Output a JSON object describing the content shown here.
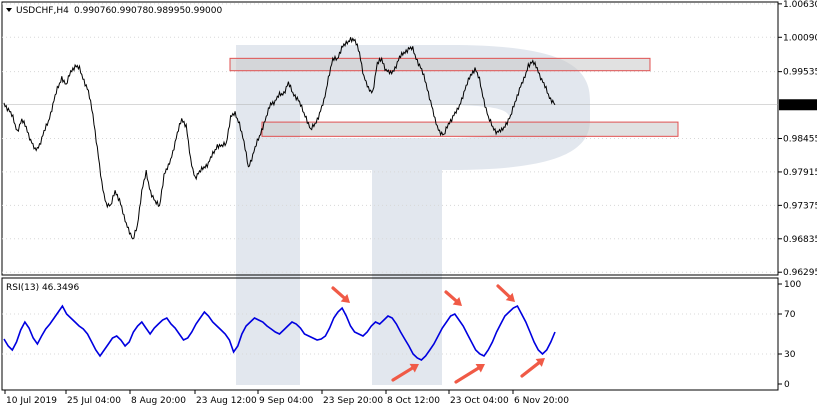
{
  "header": {
    "symbol_label": "USDCHF,H4",
    "ohlc": [
      "0.99076",
      "0.99078",
      "0.98995",
      "0.99000"
    ]
  },
  "rsi_pane": {
    "title": "RSI(13) 46.3496"
  },
  "colors": {
    "price_line": "#000000",
    "rsi_line": "#0000e0",
    "zone_fill": "#c8c8c8",
    "zone_border": "#e05050",
    "arrow": "#f05a46",
    "grid": "#d8d8d8",
    "watermark": "#dfe4ec",
    "price_tag_bg": "#000000",
    "price_tag_fg": "#ffffff"
  },
  "chart_data": [
    {
      "type": "line",
      "title": "USDCHF,H4",
      "x_ticks": [
        "10 Jul 2019",
        "25 Jul 04:00",
        "8 Aug 20:00",
        "23 Aug 12:00",
        "9 Sep 04:00",
        "23 Sep 20:00",
        "8 Oct 12:00",
        "23 Oct 04:00",
        "6 Nov 20:00"
      ],
      "y_ticks": [
        "1.00630",
        "1.00090",
        "0.99535",
        "0.98455",
        "0.97915",
        "0.97375",
        "0.96835",
        "0.96295"
      ],
      "ylim": [
        0.9625,
        1.0066
      ],
      "current_price": "0.99000",
      "series": [
        {
          "values": [
            0.9903,
            0.9892,
            0.9879,
            0.9858,
            0.9874,
            0.9865,
            0.9842,
            0.9826,
            0.9836,
            0.9855,
            0.9874,
            0.99,
            0.9925,
            0.9945,
            0.993,
            0.9955,
            0.9962,
            0.9958,
            0.994,
            0.992,
            0.9885,
            0.983,
            0.9772,
            0.9741,
            0.9735,
            0.9762,
            0.9746,
            0.9718,
            0.9701,
            0.968,
            0.9705,
            0.976,
            0.979,
            0.976,
            0.9742,
            0.9737,
            0.9786,
            0.98,
            0.9825,
            0.9852,
            0.9878,
            0.9866,
            0.981,
            0.9783,
            0.979,
            0.98,
            0.9805,
            0.982,
            0.9835,
            0.9832,
            0.9838,
            0.988,
            0.9885,
            0.9871,
            0.9838,
            0.98,
            0.9818,
            0.984,
            0.986,
            0.9878,
            0.9903,
            0.9905,
            0.9916,
            0.992,
            0.9934,
            0.992,
            0.991,
            0.9895,
            0.988,
            0.9858,
            0.987,
            0.9885,
            0.9905,
            0.9945,
            0.9972,
            0.9975,
            0.9992,
            0.9998,
            1.0008,
            1.0002,
            0.9985,
            0.9945,
            0.9925,
            0.9922,
            0.9965,
            0.9975,
            0.9955,
            0.995,
            0.996,
            0.9975,
            0.9985,
            0.999,
            0.999,
            0.9972,
            0.9955,
            0.9935,
            0.9905,
            0.9875,
            0.9858,
            0.9849,
            0.987,
            0.988,
            0.989,
            0.991,
            0.9928,
            0.9949,
            0.9958,
            0.994,
            0.9908,
            0.9878,
            0.9865,
            0.9855,
            0.9858,
            0.987,
            0.988,
            0.9905,
            0.9925,
            0.994,
            0.9965,
            0.9968,
            0.996,
            0.994,
            0.9925,
            0.991,
            0.99
          ],
          "color": "#000000"
        }
      ]
    },
    {
      "type": "line",
      "title": "RSI(13) 46.3496",
      "y_ticks": [
        "100",
        "70",
        "30",
        "0"
      ],
      "ylim": [
        0,
        100
      ],
      "series": [
        {
          "values": [
            45,
            38,
            34,
            42,
            54,
            62,
            56,
            46,
            40,
            48,
            55,
            60,
            66,
            72,
            78,
            70,
            66,
            62,
            58,
            55,
            50,
            42,
            34,
            28,
            34,
            40,
            46,
            48,
            44,
            38,
            42,
            52,
            58,
            62,
            56,
            50,
            56,
            60,
            64,
            66,
            60,
            56,
            50,
            44,
            46,
            52,
            60,
            66,
            72,
            68,
            62,
            58,
            54,
            50,
            44,
            32,
            38,
            50,
            58,
            62,
            66,
            64,
            62,
            58,
            55,
            52,
            50,
            54,
            58,
            62,
            60,
            56,
            50,
            48,
            46,
            44,
            45,
            48,
            56,
            66,
            72,
            76,
            68,
            58,
            52,
            50,
            48,
            52,
            58,
            62,
            60,
            64,
            68,
            66,
            60,
            52,
            45,
            38,
            30,
            26,
            24,
            28,
            34,
            40,
            48,
            56,
            62,
            68,
            70,
            64,
            58,
            50,
            42,
            34,
            30,
            28,
            34,
            42,
            52,
            60,
            68,
            72,
            76,
            78,
            70,
            62,
            52,
            42,
            34,
            30,
            34,
            42,
            52
          ],
          "color": "#0000e0"
        }
      ]
    }
  ]
}
